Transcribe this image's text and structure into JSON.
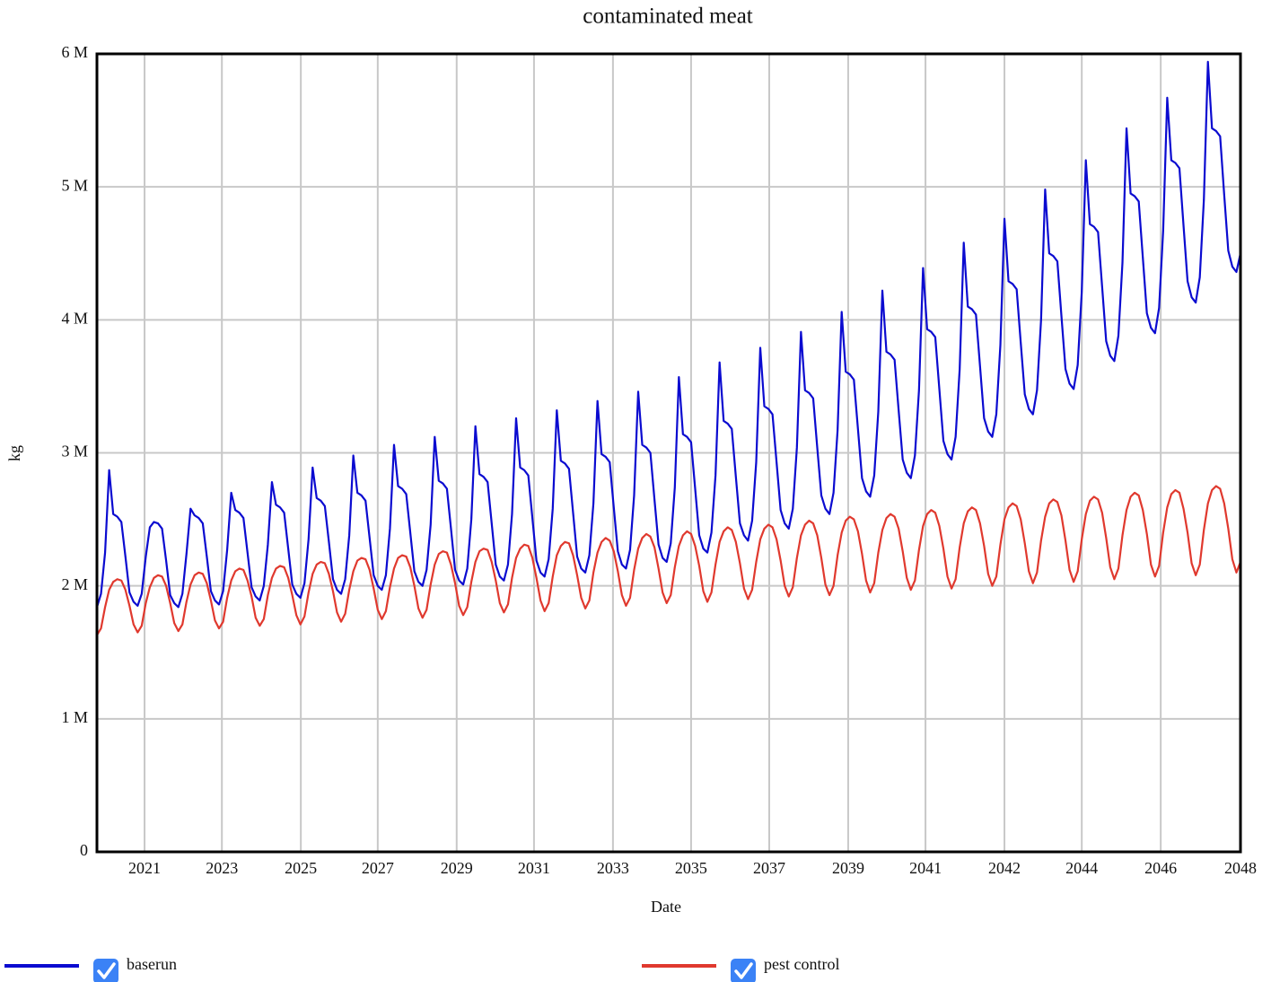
{
  "chart_data": {
    "type": "line",
    "title": "contaminated meat",
    "x_label": "Date",
    "y_label": "kg",
    "xlim": [
      2019.85,
      2047.95
    ],
    "xticks": [
      {
        "value": 2021.02,
        "label": "2021"
      },
      {
        "value": 2022.92,
        "label": "2023"
      },
      {
        "value": 2024.86,
        "label": "2025"
      },
      {
        "value": 2026.75,
        "label": "2027"
      },
      {
        "value": 2028.69,
        "label": "2029"
      },
      {
        "value": 2030.59,
        "label": "2031"
      },
      {
        "value": 2032.53,
        "label": "2033"
      },
      {
        "value": 2034.45,
        "label": "2035"
      },
      {
        "value": 2036.37,
        "label": "2037"
      },
      {
        "value": 2038.31,
        "label": "2039"
      },
      {
        "value": 2040.21,
        "label": "2041"
      },
      {
        "value": 2042.15,
        "label": "2042"
      },
      {
        "value": 2044.05,
        "label": "2044"
      },
      {
        "value": 2045.99,
        "label": "2046"
      },
      {
        "value": 2047.95,
        "label": "2048"
      }
    ],
    "ylim": [
      0,
      6000000
    ],
    "yticks": [
      0,
      {
        "value": 1000000,
        "label": "1 M"
      },
      {
        "value": 2000000,
        "label": "2 M"
      },
      {
        "value": 3000000,
        "label": "3 M"
      },
      {
        "value": 4000000,
        "label": "4 M"
      },
      {
        "value": 5000000,
        "label": "5 M"
      },
      {
        "value": 6000000,
        "label": "6 M"
      }
    ],
    "grid": true,
    "legend": "bottom",
    "x": [
      2019.85,
      2019.95,
      2020.05,
      2020.15,
      2020.25,
      2020.35,
      2020.45,
      2020.55,
      2020.65,
      2020.75,
      2020.85,
      2020.95,
      2021.05,
      2021.15,
      2021.25,
      2021.35,
      2021.45,
      2021.55,
      2021.65,
      2021.75,
      2021.85,
      2021.95,
      2022.05,
      2022.15,
      2022.25,
      2022.35,
      2022.45,
      2022.55,
      2022.65,
      2022.75,
      2022.85,
      2022.95,
      2023.05,
      2023.15,
      2023.25,
      2023.35,
      2023.45,
      2023.55,
      2023.65,
      2023.75,
      2023.85,
      2023.95,
      2024.05,
      2024.15,
      2024.25,
      2024.35,
      2024.45,
      2024.55,
      2024.65,
      2024.75,
      2024.85,
      2024.95,
      2025.05,
      2025.15,
      2025.25,
      2025.35,
      2025.45,
      2025.55,
      2025.65,
      2025.75,
      2025.85,
      2025.95,
      2026.05,
      2026.15,
      2026.25,
      2026.35,
      2026.45,
      2026.55,
      2026.65,
      2026.75,
      2026.85,
      2026.95,
      2027.05,
      2027.15,
      2027.25,
      2027.35,
      2027.45,
      2027.55,
      2027.65,
      2027.75,
      2027.85,
      2027.95,
      2028.05,
      2028.15,
      2028.25,
      2028.35,
      2028.45,
      2028.55,
      2028.65,
      2028.75,
      2028.85,
      2028.95,
      2029.05,
      2029.15,
      2029.25,
      2029.35,
      2029.45,
      2029.55,
      2029.65,
      2029.75,
      2029.85,
      2029.95,
      2030.05,
      2030.15,
      2030.25,
      2030.35,
      2030.45,
      2030.55,
      2030.65,
      2030.75,
      2030.85,
      2030.95,
      2031.05,
      2031.15,
      2031.25,
      2031.35,
      2031.45,
      2031.55,
      2031.65,
      2031.75,
      2031.85,
      2031.95,
      2032.05,
      2032.15,
      2032.25,
      2032.35,
      2032.45,
      2032.55,
      2032.65,
      2032.75,
      2032.85,
      2032.95,
      2033.05,
      2033.15,
      2033.25,
      2033.35,
      2033.45,
      2033.55,
      2033.65,
      2033.75,
      2033.85,
      2033.95,
      2034.05,
      2034.15,
      2034.25,
      2034.35,
      2034.45,
      2034.55,
      2034.65,
      2034.75,
      2034.85,
      2034.95,
      2035.05,
      2035.15,
      2035.25,
      2035.35,
      2035.45,
      2035.55,
      2035.65,
      2035.75,
      2035.85,
      2035.95,
      2036.05,
      2036.15,
      2036.25,
      2036.35,
      2036.45,
      2036.55,
      2036.65,
      2036.75,
      2036.85,
      2036.95,
      2037.05,
      2037.15,
      2037.25,
      2037.35,
      2037.45,
      2037.55,
      2037.65,
      2037.75,
      2037.85,
      2037.95,
      2038.05,
      2038.15,
      2038.25,
      2038.35,
      2038.45,
      2038.55,
      2038.65,
      2038.75,
      2038.85,
      2038.95,
      2039.05,
      2039.15,
      2039.25,
      2039.35,
      2039.45,
      2039.55,
      2039.65,
      2039.75,
      2039.85,
      2039.95,
      2040.05,
      2040.15,
      2040.25,
      2040.35,
      2040.45,
      2040.55,
      2040.65,
      2040.75,
      2040.85,
      2040.95,
      2041.05,
      2041.15,
      2041.25,
      2041.35,
      2041.45,
      2041.55,
      2041.65,
      2041.75,
      2041.85,
      2041.95,
      2042.05,
      2042.15,
      2042.25,
      2042.35,
      2042.45,
      2042.55,
      2042.65,
      2042.75,
      2042.85,
      2042.95,
      2043.05,
      2043.15,
      2043.25,
      2043.35,
      2043.45,
      2043.55,
      2043.65,
      2043.75,
      2043.85,
      2043.95,
      2044.05,
      2044.15,
      2044.25,
      2044.35,
      2044.45,
      2044.55,
      2044.65,
      2044.75,
      2044.85,
      2044.95,
      2045.05,
      2045.15,
      2045.25,
      2045.35,
      2045.45,
      2045.55,
      2045.65,
      2045.75,
      2045.85,
      2045.95,
      2046.05,
      2046.15,
      2046.25,
      2046.35,
      2046.45,
      2046.55,
      2046.65,
      2046.75,
      2046.85,
      2046.95,
      2047.05,
      2047.15,
      2047.25,
      2047.35,
      2047.45,
      2047.55,
      2047.65,
      2047.75,
      2047.85,
      2047.95
    ],
    "series": [
      {
        "name": "baserun",
        "color": "#0b0bd0",
        "values": [
          1840000,
          1940000,
          2250000,
          2870000,
          2540000,
          2520000,
          2480000,
          2220000,
          1950000,
          1880000,
          1850000,
          1940000,
          2220000,
          2440000,
          2480000,
          2470000,
          2430000,
          2190000,
          1930000,
          1870000,
          1840000,
          1940000,
          2240000,
          2580000,
          2530000,
          2510000,
          2470000,
          2220000,
          1960000,
          1890000,
          1860000,
          1960000,
          2270000,
          2700000,
          2570000,
          2550000,
          2510000,
          2250000,
          1990000,
          1920000,
          1890000,
          2000000,
          2310000,
          2780000,
          2610000,
          2590000,
          2550000,
          2280000,
          2010000,
          1940000,
          1910000,
          2020000,
          2350000,
          2890000,
          2660000,
          2640000,
          2600000,
          2330000,
          2050000,
          1970000,
          1940000,
          2050000,
          2380000,
          2980000,
          2700000,
          2680000,
          2640000,
          2360000,
          2080000,
          2000000,
          1970000,
          2080000,
          2430000,
          3060000,
          2750000,
          2730000,
          2690000,
          2400000,
          2110000,
          2030000,
          2000000,
          2120000,
          2460000,
          3120000,
          2790000,
          2770000,
          2730000,
          2430000,
          2120000,
          2040000,
          2010000,
          2130000,
          2500000,
          3200000,
          2840000,
          2820000,
          2780000,
          2470000,
          2160000,
          2070000,
          2040000,
          2160000,
          2540000,
          3260000,
          2890000,
          2870000,
          2830000,
          2510000,
          2190000,
          2100000,
          2070000,
          2200000,
          2580000,
          3320000,
          2940000,
          2920000,
          2880000,
          2550000,
          2220000,
          2130000,
          2100000,
          2230000,
          2620000,
          3390000,
          2990000,
          2970000,
          2930000,
          2590000,
          2260000,
          2160000,
          2130000,
          2270000,
          2680000,
          3460000,
          3060000,
          3040000,
          3000000,
          2650000,
          2310000,
          2210000,
          2180000,
          2320000,
          2740000,
          3570000,
          3140000,
          3120000,
          3080000,
          2730000,
          2380000,
          2280000,
          2250000,
          2400000,
          2830000,
          3680000,
          3240000,
          3220000,
          3180000,
          2820000,
          2470000,
          2380000,
          2340000,
          2490000,
          2930000,
          3790000,
          3350000,
          3330000,
          3290000,
          2930000,
          2570000,
          2470000,
          2430000,
          2580000,
          3040000,
          3910000,
          3470000,
          3450000,
          3410000,
          3040000,
          2680000,
          2580000,
          2540000,
          2700000,
          3170000,
          4060000,
          3610000,
          3590000,
          3550000,
          3180000,
          2810000,
          2710000,
          2670000,
          2830000,
          3310000,
          4220000,
          3760000,
          3740000,
          3700000,
          3320000,
          2950000,
          2850000,
          2810000,
          2980000,
          3470000,
          4390000,
          3930000,
          3910000,
          3870000,
          3480000,
          3090000,
          2990000,
          2950000,
          3120000,
          3630000,
          4580000,
          4100000,
          4080000,
          4040000,
          3650000,
          3260000,
          3160000,
          3120000,
          3290000,
          3810000,
          4760000,
          4290000,
          4270000,
          4230000,
          3830000,
          3440000,
          3330000,
          3290000,
          3470000,
          4000000,
          4980000,
          4500000,
          4480000,
          4440000,
          4030000,
          3630000,
          3520000,
          3480000,
          3660000,
          4210000,
          5200000,
          4720000,
          4700000,
          4660000,
          4250000,
          3840000,
          3730000,
          3690000,
          3880000,
          4430000,
          5440000,
          4950000,
          4930000,
          4890000,
          4470000,
          4050000,
          3940000,
          3900000,
          4090000,
          4670000,
          5670000,
          5200000,
          5180000,
          5140000,
          4710000,
          4290000,
          4170000,
          4130000,
          4320000,
          4900000,
          5940000,
          5440000,
          5420000,
          5380000,
          4940000,
          4520000,
          4400000,
          4360000,
          4500000
        ]
      },
      {
        "name": "pest control",
        "color": "#e0392e",
        "values": [
          1630000,
          1680000,
          1840000,
          1970000,
          2030000,
          2050000,
          2040000,
          1970000,
          1850000,
          1710000,
          1650000,
          1700000,
          1870000,
          1990000,
          2060000,
          2080000,
          2070000,
          2000000,
          1870000,
          1720000,
          1660000,
          1710000,
          1880000,
          2010000,
          2080000,
          2100000,
          2090000,
          2020000,
          1890000,
          1740000,
          1680000,
          1730000,
          1910000,
          2040000,
          2110000,
          2130000,
          2120000,
          2040000,
          1920000,
          1760000,
          1700000,
          1750000,
          1930000,
          2060000,
          2130000,
          2150000,
          2140000,
          2060000,
          1930000,
          1780000,
          1710000,
          1770000,
          1950000,
          2090000,
          2160000,
          2180000,
          2170000,
          2090000,
          1960000,
          1800000,
          1730000,
          1790000,
          1970000,
          2110000,
          2190000,
          2210000,
          2200000,
          2120000,
          1980000,
          1820000,
          1750000,
          1810000,
          1990000,
          2130000,
          2210000,
          2230000,
          2220000,
          2140000,
          2000000,
          1830000,
          1760000,
          1820000,
          2010000,
          2160000,
          2240000,
          2260000,
          2250000,
          2160000,
          2020000,
          1850000,
          1780000,
          1840000,
          2030000,
          2180000,
          2260000,
          2280000,
          2270000,
          2180000,
          2040000,
          1870000,
          1800000,
          1860000,
          2060000,
          2210000,
          2280000,
          2310000,
          2300000,
          2210000,
          2060000,
          1890000,
          1810000,
          1870000,
          2070000,
          2230000,
          2300000,
          2330000,
          2320000,
          2230000,
          2080000,
          1910000,
          1830000,
          1890000,
          2100000,
          2250000,
          2330000,
          2360000,
          2340000,
          2260000,
          2110000,
          1930000,
          1850000,
          1910000,
          2120000,
          2280000,
          2360000,
          2390000,
          2370000,
          2290000,
          2130000,
          1950000,
          1870000,
          1930000,
          2140000,
          2300000,
          2380000,
          2410000,
          2390000,
          2300000,
          2150000,
          1960000,
          1880000,
          1950000,
          2160000,
          2330000,
          2410000,
          2440000,
          2420000,
          2330000,
          2170000,
          1980000,
          1900000,
          1970000,
          2180000,
          2350000,
          2430000,
          2460000,
          2440000,
          2350000,
          2190000,
          2000000,
          1920000,
          1990000,
          2210000,
          2380000,
          2460000,
          2490000,
          2470000,
          2380000,
          2210000,
          2010000,
          1930000,
          2000000,
          2230000,
          2400000,
          2490000,
          2520000,
          2500000,
          2410000,
          2240000,
          2040000,
          1950000,
          2020000,
          2250000,
          2420000,
          2510000,
          2540000,
          2520000,
          2430000,
          2260000,
          2060000,
          1970000,
          2040000,
          2270000,
          2450000,
          2540000,
          2570000,
          2550000,
          2450000,
          2280000,
          2070000,
          1980000,
          2050000,
          2290000,
          2470000,
          2560000,
          2590000,
          2570000,
          2470000,
          2300000,
          2090000,
          2000000,
          2070000,
          2310000,
          2500000,
          2590000,
          2620000,
          2600000,
          2500000,
          2320000,
          2110000,
          2020000,
          2100000,
          2340000,
          2520000,
          2620000,
          2650000,
          2630000,
          2530000,
          2340000,
          2120000,
          2030000,
          2110000,
          2350000,
          2540000,
          2640000,
          2670000,
          2650000,
          2550000,
          2360000,
          2140000,
          2050000,
          2130000,
          2380000,
          2570000,
          2670000,
          2700000,
          2680000,
          2570000,
          2390000,
          2160000,
          2070000,
          2150000,
          2400000,
          2590000,
          2690000,
          2720000,
          2700000,
          2580000,
          2400000,
          2170000,
          2080000,
          2160000,
          2420000,
          2620000,
          2720000,
          2750000,
          2730000,
          2620000,
          2430000,
          2200000,
          2100000,
          2180000
        ]
      }
    ]
  }
}
